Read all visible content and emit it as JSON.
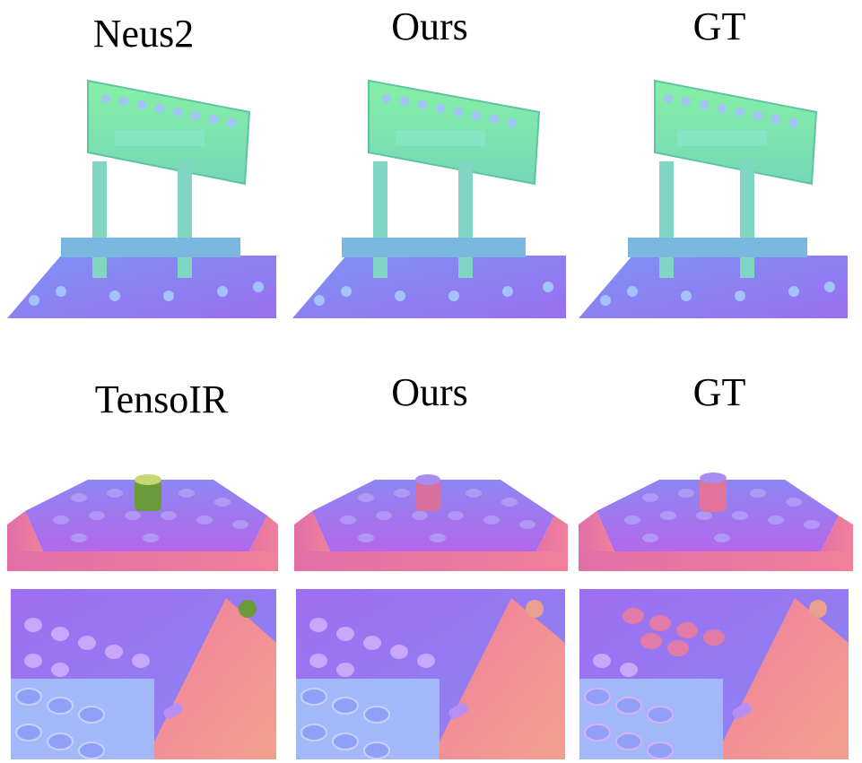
{
  "top_row": {
    "labels": [
      "Neus2",
      "Ours",
      "GT"
    ]
  },
  "bottom_row": {
    "labels": [
      "TensoIR",
      "Ours",
      "GT"
    ]
  },
  "colors": {
    "normal_green": "#7ef0a0",
    "normal_blue": "#7f8cf2",
    "normal_purple": "#9c6cf0",
    "normal_pink": "#f27f9c",
    "background": "#ffffff"
  }
}
